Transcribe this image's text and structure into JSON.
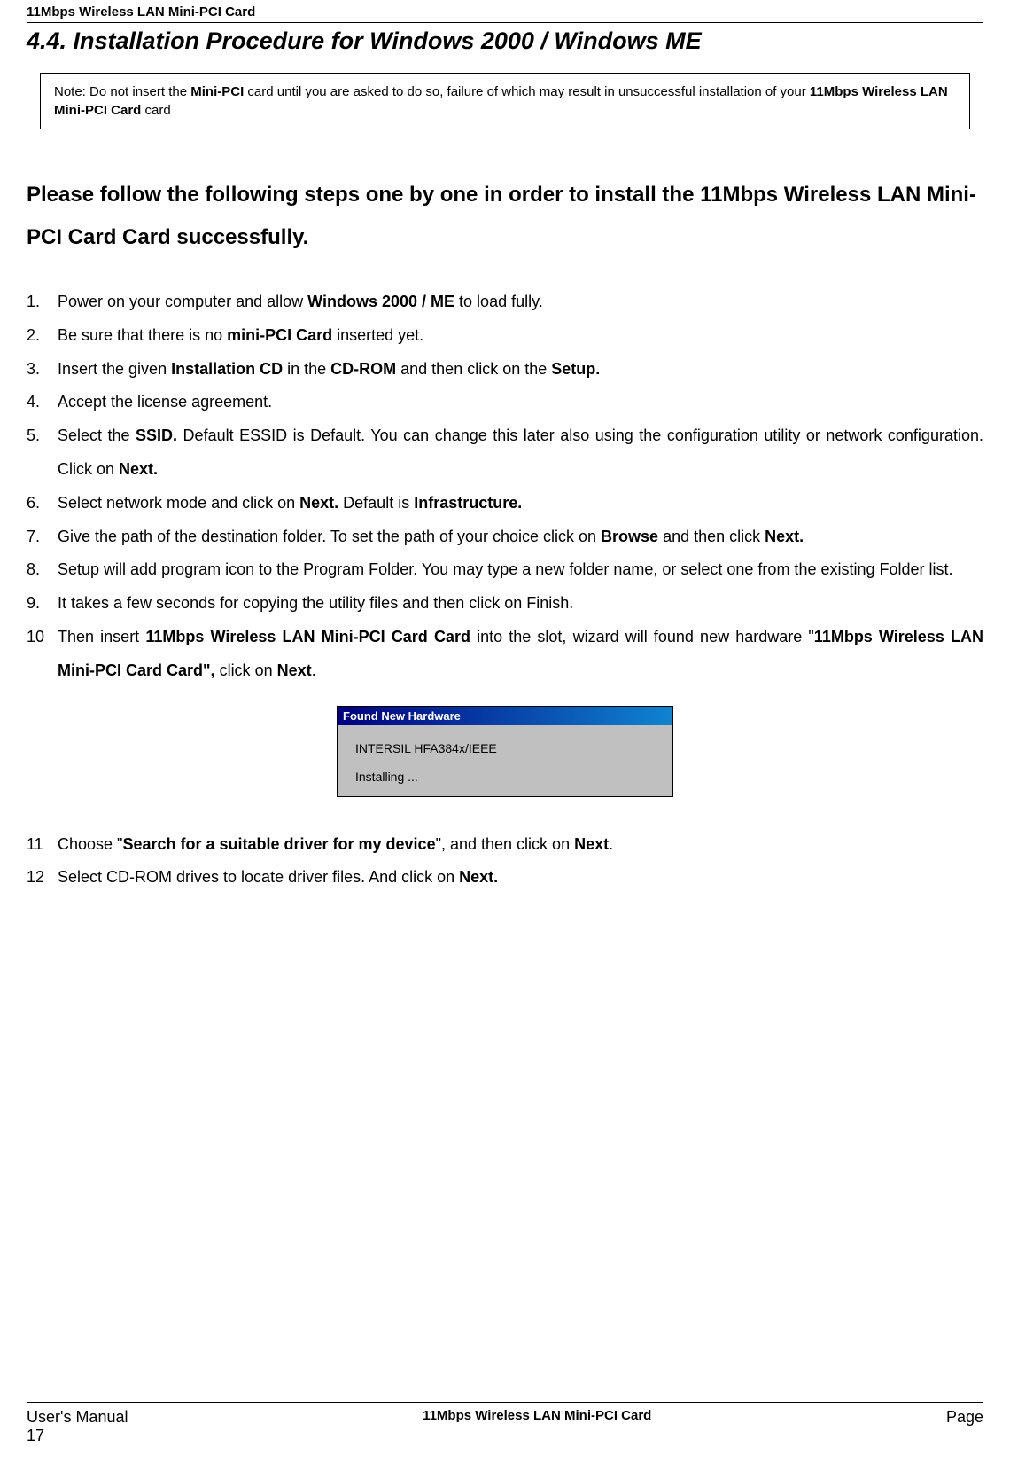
{
  "header": {
    "product_title": "11Mbps Wireless LAN Mini-PCI Card"
  },
  "section": {
    "heading": "4.4. Installation Procedure for Windows 2000 / Windows ME"
  },
  "note": {
    "prefix": "Note: Do not insert the ",
    "bold1": "Mini-PCI",
    "mid1": " card until you are asked to do so, failure of which may result in unsuccessful installation of your ",
    "bold2": "11Mbps Wireless LAN Mini-PCI Card",
    "suffix": " card"
  },
  "intro": {
    "text": "Please follow the following steps one by one in order to install the 11Mbps Wireless LAN Mini-PCI Card Card successfully."
  },
  "steps": {
    "s1_a": "Power on your computer and allow ",
    "s1_b": "Windows 2000 / ME",
    "s1_c": " to load fully.",
    "s2_a": "Be sure that there is no ",
    "s2_b": "mini-PCI Card",
    "s2_c": " inserted yet.",
    "s3_a": "Insert the given ",
    "s3_b": "Installation CD",
    "s3_c": " in the ",
    "s3_d": "CD-ROM",
    "s3_e": " and then click on the ",
    "s3_f": "Setup.",
    "s4": "Accept the license agreement.",
    "s5_a": "Select the ",
    "s5_b": "SSID.",
    "s5_c": "  Default ESSID is Default.  You can change this later also using the configuration utility or network configuration.  Click on ",
    "s5_d": "Next.",
    "s6_a": "Select network mode and click on ",
    "s6_b": "Next.",
    "s6_c": "  Default is ",
    "s6_d": "Infrastructure.",
    "s7_a": "Give the path of the destination folder.  To set the path of your choice click on ",
    "s7_b": "Browse",
    "s7_c": " and then click ",
    "s7_d": "Next.",
    "s8": "Setup will add program icon to the Program Folder. You may type a new folder name, or select one from the existing Folder list.",
    "s9": "It takes a few seconds for copying the utility files and then click on Finish.",
    "s10_a": "Then insert ",
    "s10_b": "11Mbps Wireless LAN Mini-PCI Card Card",
    "s10_c": " into the slot, wizard will found new hardware \"",
    "s10_d": "11Mbps Wireless LAN Mini-PCI Card Card\",",
    "s10_e": " click on ",
    "s10_f": "Next",
    "s10_g": ".",
    "s11_a": "Choose \"",
    "s11_b": "Search for a suitable driver for my device",
    "s11_c": "\", and then click on ",
    "s11_d": "Next",
    "s11_e": ".",
    "s12_a": "Select CD-ROM drives to locate driver files. And click on ",
    "s12_b": "Next."
  },
  "dialog": {
    "title": "Found New Hardware",
    "device": "INTERSIL HFA384x/IEEE",
    "status": "Installing ..."
  },
  "footer": {
    "left": "User's Manual",
    "left2": "17",
    "center": "11Mbps Wireless LAN Mini-PCI Card",
    "right": "Page"
  }
}
